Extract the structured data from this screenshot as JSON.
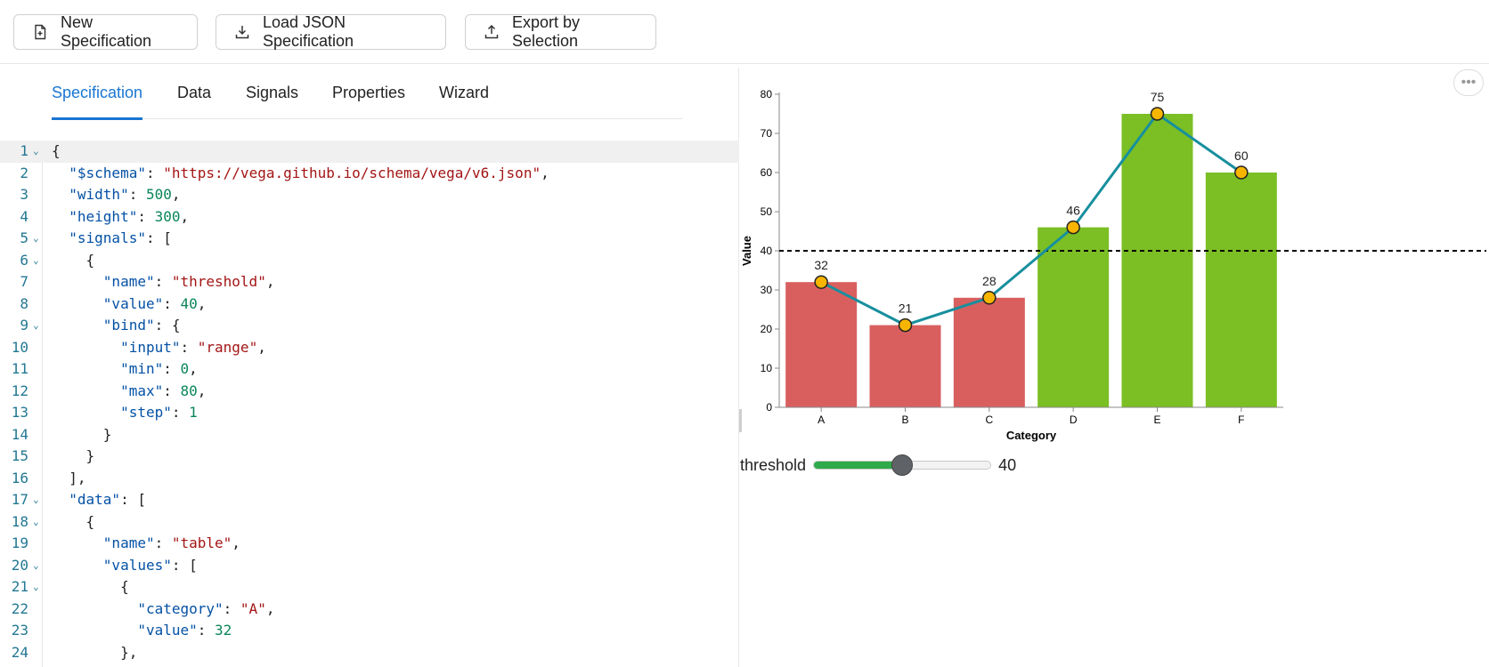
{
  "toolbar": {
    "new_spec": "New Specification",
    "load_json": "Load JSON Specification",
    "export": "Export by Selection"
  },
  "tabs": [
    "Specification",
    "Data",
    "Signals",
    "Properties",
    "Wizard"
  ],
  "editor_lines": [
    [
      [
        "p",
        "{"
      ]
    ],
    [
      [
        "p",
        "  "
      ],
      [
        "k",
        "\"$schema\""
      ],
      [
        "p",
        ": "
      ],
      [
        "s",
        "\"https://vega.github.io/schema/vega/v6.json\""
      ],
      [
        "p",
        ","
      ]
    ],
    [
      [
        "p",
        "  "
      ],
      [
        "k",
        "\"width\""
      ],
      [
        "p",
        ": "
      ],
      [
        "n",
        "500"
      ],
      [
        "p",
        ","
      ]
    ],
    [
      [
        "p",
        "  "
      ],
      [
        "k",
        "\"height\""
      ],
      [
        "p",
        ": "
      ],
      [
        "n",
        "300"
      ],
      [
        "p",
        ","
      ]
    ],
    [
      [
        "p",
        "  "
      ],
      [
        "k",
        "\"signals\""
      ],
      [
        "p",
        ": ["
      ]
    ],
    [
      [
        "p",
        "    {"
      ]
    ],
    [
      [
        "p",
        "      "
      ],
      [
        "k",
        "\"name\""
      ],
      [
        "p",
        ": "
      ],
      [
        "s",
        "\"threshold\""
      ],
      [
        "p",
        ","
      ]
    ],
    [
      [
        "p",
        "      "
      ],
      [
        "k",
        "\"value\""
      ],
      [
        "p",
        ": "
      ],
      [
        "n",
        "40"
      ],
      [
        "p",
        ","
      ]
    ],
    [
      [
        "p",
        "      "
      ],
      [
        "k",
        "\"bind\""
      ],
      [
        "p",
        ": {"
      ]
    ],
    [
      [
        "p",
        "        "
      ],
      [
        "k",
        "\"input\""
      ],
      [
        "p",
        ": "
      ],
      [
        "s",
        "\"range\""
      ],
      [
        "p",
        ","
      ]
    ],
    [
      [
        "p",
        "        "
      ],
      [
        "k",
        "\"min\""
      ],
      [
        "p",
        ": "
      ],
      [
        "n",
        "0"
      ],
      [
        "p",
        ","
      ]
    ],
    [
      [
        "p",
        "        "
      ],
      [
        "k",
        "\"max\""
      ],
      [
        "p",
        ": "
      ],
      [
        "n",
        "80"
      ],
      [
        "p",
        ","
      ]
    ],
    [
      [
        "p",
        "        "
      ],
      [
        "k",
        "\"step\""
      ],
      [
        "p",
        ": "
      ],
      [
        "n",
        "1"
      ]
    ],
    [
      [
        "p",
        "      }"
      ]
    ],
    [
      [
        "p",
        "    }"
      ]
    ],
    [
      [
        "p",
        "  ],"
      ]
    ],
    [
      [
        "p",
        "  "
      ],
      [
        "k",
        "\"data\""
      ],
      [
        "p",
        ": ["
      ]
    ],
    [
      [
        "p",
        "    {"
      ]
    ],
    [
      [
        "p",
        "      "
      ],
      [
        "k",
        "\"name\""
      ],
      [
        "p",
        ": "
      ],
      [
        "s",
        "\"table\""
      ],
      [
        "p",
        ","
      ]
    ],
    [
      [
        "p",
        "      "
      ],
      [
        "k",
        "\"values\""
      ],
      [
        "p",
        ": ["
      ]
    ],
    [
      [
        "p",
        "        {"
      ]
    ],
    [
      [
        "p",
        "          "
      ],
      [
        "k",
        "\"category\""
      ],
      [
        "p",
        ": "
      ],
      [
        "s",
        "\"A\""
      ],
      [
        "p",
        ","
      ]
    ],
    [
      [
        "p",
        "          "
      ],
      [
        "k",
        "\"value\""
      ],
      [
        "p",
        ": "
      ],
      [
        "n",
        "32"
      ]
    ],
    [
      [
        "p",
        "        },"
      ]
    ]
  ],
  "folded_lines": [
    1,
    5,
    6,
    9,
    17,
    18,
    20,
    21
  ],
  "chart_data": {
    "type": "bar",
    "categories": [
      "A",
      "B",
      "C",
      "D",
      "E",
      "F"
    ],
    "values": [
      32,
      21,
      28,
      46,
      75,
      60
    ],
    "threshold": 40,
    "xlabel": "Category",
    "ylabel": "Value",
    "ylim": [
      0,
      80
    ],
    "yticks": [
      0,
      10,
      20,
      30,
      40,
      50,
      60,
      70,
      80
    ],
    "colors": {
      "below": "#d95f5f",
      "above": "#7bbf25",
      "line": "#178f9e",
      "point": "#f7b500",
      "threshold": "#000000"
    },
    "overlay": "line with points connecting bar tops",
    "threshold_rule": "dashed"
  },
  "slider": {
    "label": "threshold",
    "value": 40,
    "min": 0,
    "max": 80
  }
}
